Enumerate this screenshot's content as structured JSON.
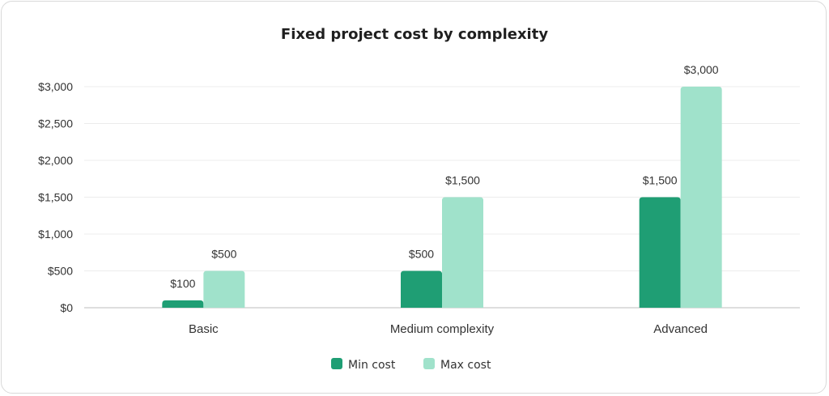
{
  "chart_data": {
    "type": "bar",
    "title": "Fixed project cost by complexity",
    "categories": [
      "Basic",
      "Medium complexity",
      "Advanced"
    ],
    "series": [
      {
        "name": "Min cost",
        "values": [
          100,
          500,
          1500
        ],
        "labels": [
          "$100",
          "$500",
          "$1,500"
        ],
        "color": "#1f9e74"
      },
      {
        "name": "Max cost",
        "values": [
          500,
          1500,
          3000
        ],
        "labels": [
          "$500",
          "$1,500",
          "$3,000"
        ],
        "color": "#a0e2cb"
      }
    ],
    "yticks": [
      {
        "value": 0,
        "label": "$0"
      },
      {
        "value": 500,
        "label": "$500"
      },
      {
        "value": 1000,
        "label": "$1,000"
      },
      {
        "value": 1500,
        "label": "$1,500"
      },
      {
        "value": 2000,
        "label": "$2,000"
      },
      {
        "value": 2500,
        "label": "$2,500"
      },
      {
        "value": 3000,
        "label": "$3,000"
      }
    ],
    "ylim": [
      0,
      3000
    ],
    "grid": true,
    "legend_position": "bottom"
  }
}
